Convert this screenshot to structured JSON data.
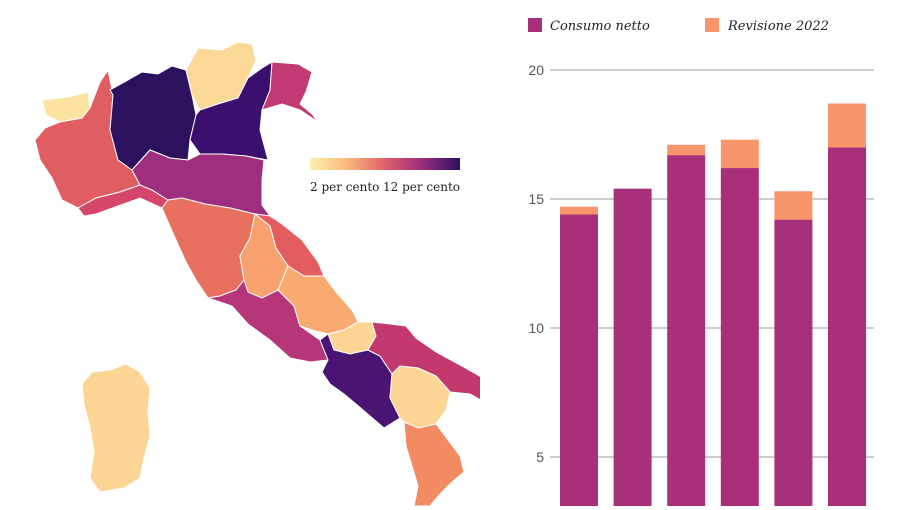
{
  "map": {
    "legend": {
      "low_label": "2 per cento",
      "high_label": "12 per cento"
    },
    "palette": [
      "#fde3a1",
      "#f9bb7d",
      "#f4956a",
      "#e8705f",
      "#d04e6b",
      "#b63679",
      "#8c2981",
      "#4a1473",
      "#2c115f"
    ],
    "regions": [
      {
        "name": "Valle d'Aosta",
        "color": "#fde3a1"
      },
      {
        "name": "Piemonte",
        "color": "#e05e62"
      },
      {
        "name": "Lombardia",
        "color": "#2c115f"
      },
      {
        "name": "Trentino-Alto Adige",
        "color": "#fcd897"
      },
      {
        "name": "Veneto",
        "color": "#3b0f6e"
      },
      {
        "name": "Friuli-Venezia Giulia",
        "color": "#c23a73"
      },
      {
        "name": "Liguria",
        "color": "#d5466a"
      },
      {
        "name": "Emilia-Romagna",
        "color": "#9e2e7e"
      },
      {
        "name": "Toscana",
        "color": "#e8705f"
      },
      {
        "name": "Umbria",
        "color": "#f6a16e"
      },
      {
        "name": "Marche",
        "color": "#e25c60"
      },
      {
        "name": "Lazio",
        "color": "#b63679"
      },
      {
        "name": "Abruzzo",
        "color": "#f8aa70"
      },
      {
        "name": "Molise",
        "color": "#fcd594"
      },
      {
        "name": "Campania",
        "color": "#4a1473"
      },
      {
        "name": "Puglia",
        "color": "#c3396f"
      },
      {
        "name": "Basilicata",
        "color": "#fcd594"
      },
      {
        "name": "Calabria",
        "color": "#f28a62"
      },
      {
        "name": "Sardegna",
        "color": "#fcd594"
      }
    ]
  },
  "chart_data": {
    "type": "bar",
    "stacked": true,
    "categories": [
      "",
      "",
      "",
      "",
      "",
      ""
    ],
    "series": [
      {
        "name": "Consumo netto",
        "color": "#a8307a",
        "values": [
          14.4,
          15.4,
          16.7,
          16.2,
          14.2,
          17.0
        ]
      },
      {
        "name": "Revisione 2022",
        "color": "#f8956a",
        "values": [
          0.3,
          0.0,
          0.4,
          1.1,
          1.1,
          1.7
        ]
      }
    ],
    "y_ticks": [
      "5",
      "10",
      "15",
      "20"
    ],
    "ylim": [
      0,
      20
    ],
    "grid": true,
    "legend_position": "top"
  }
}
